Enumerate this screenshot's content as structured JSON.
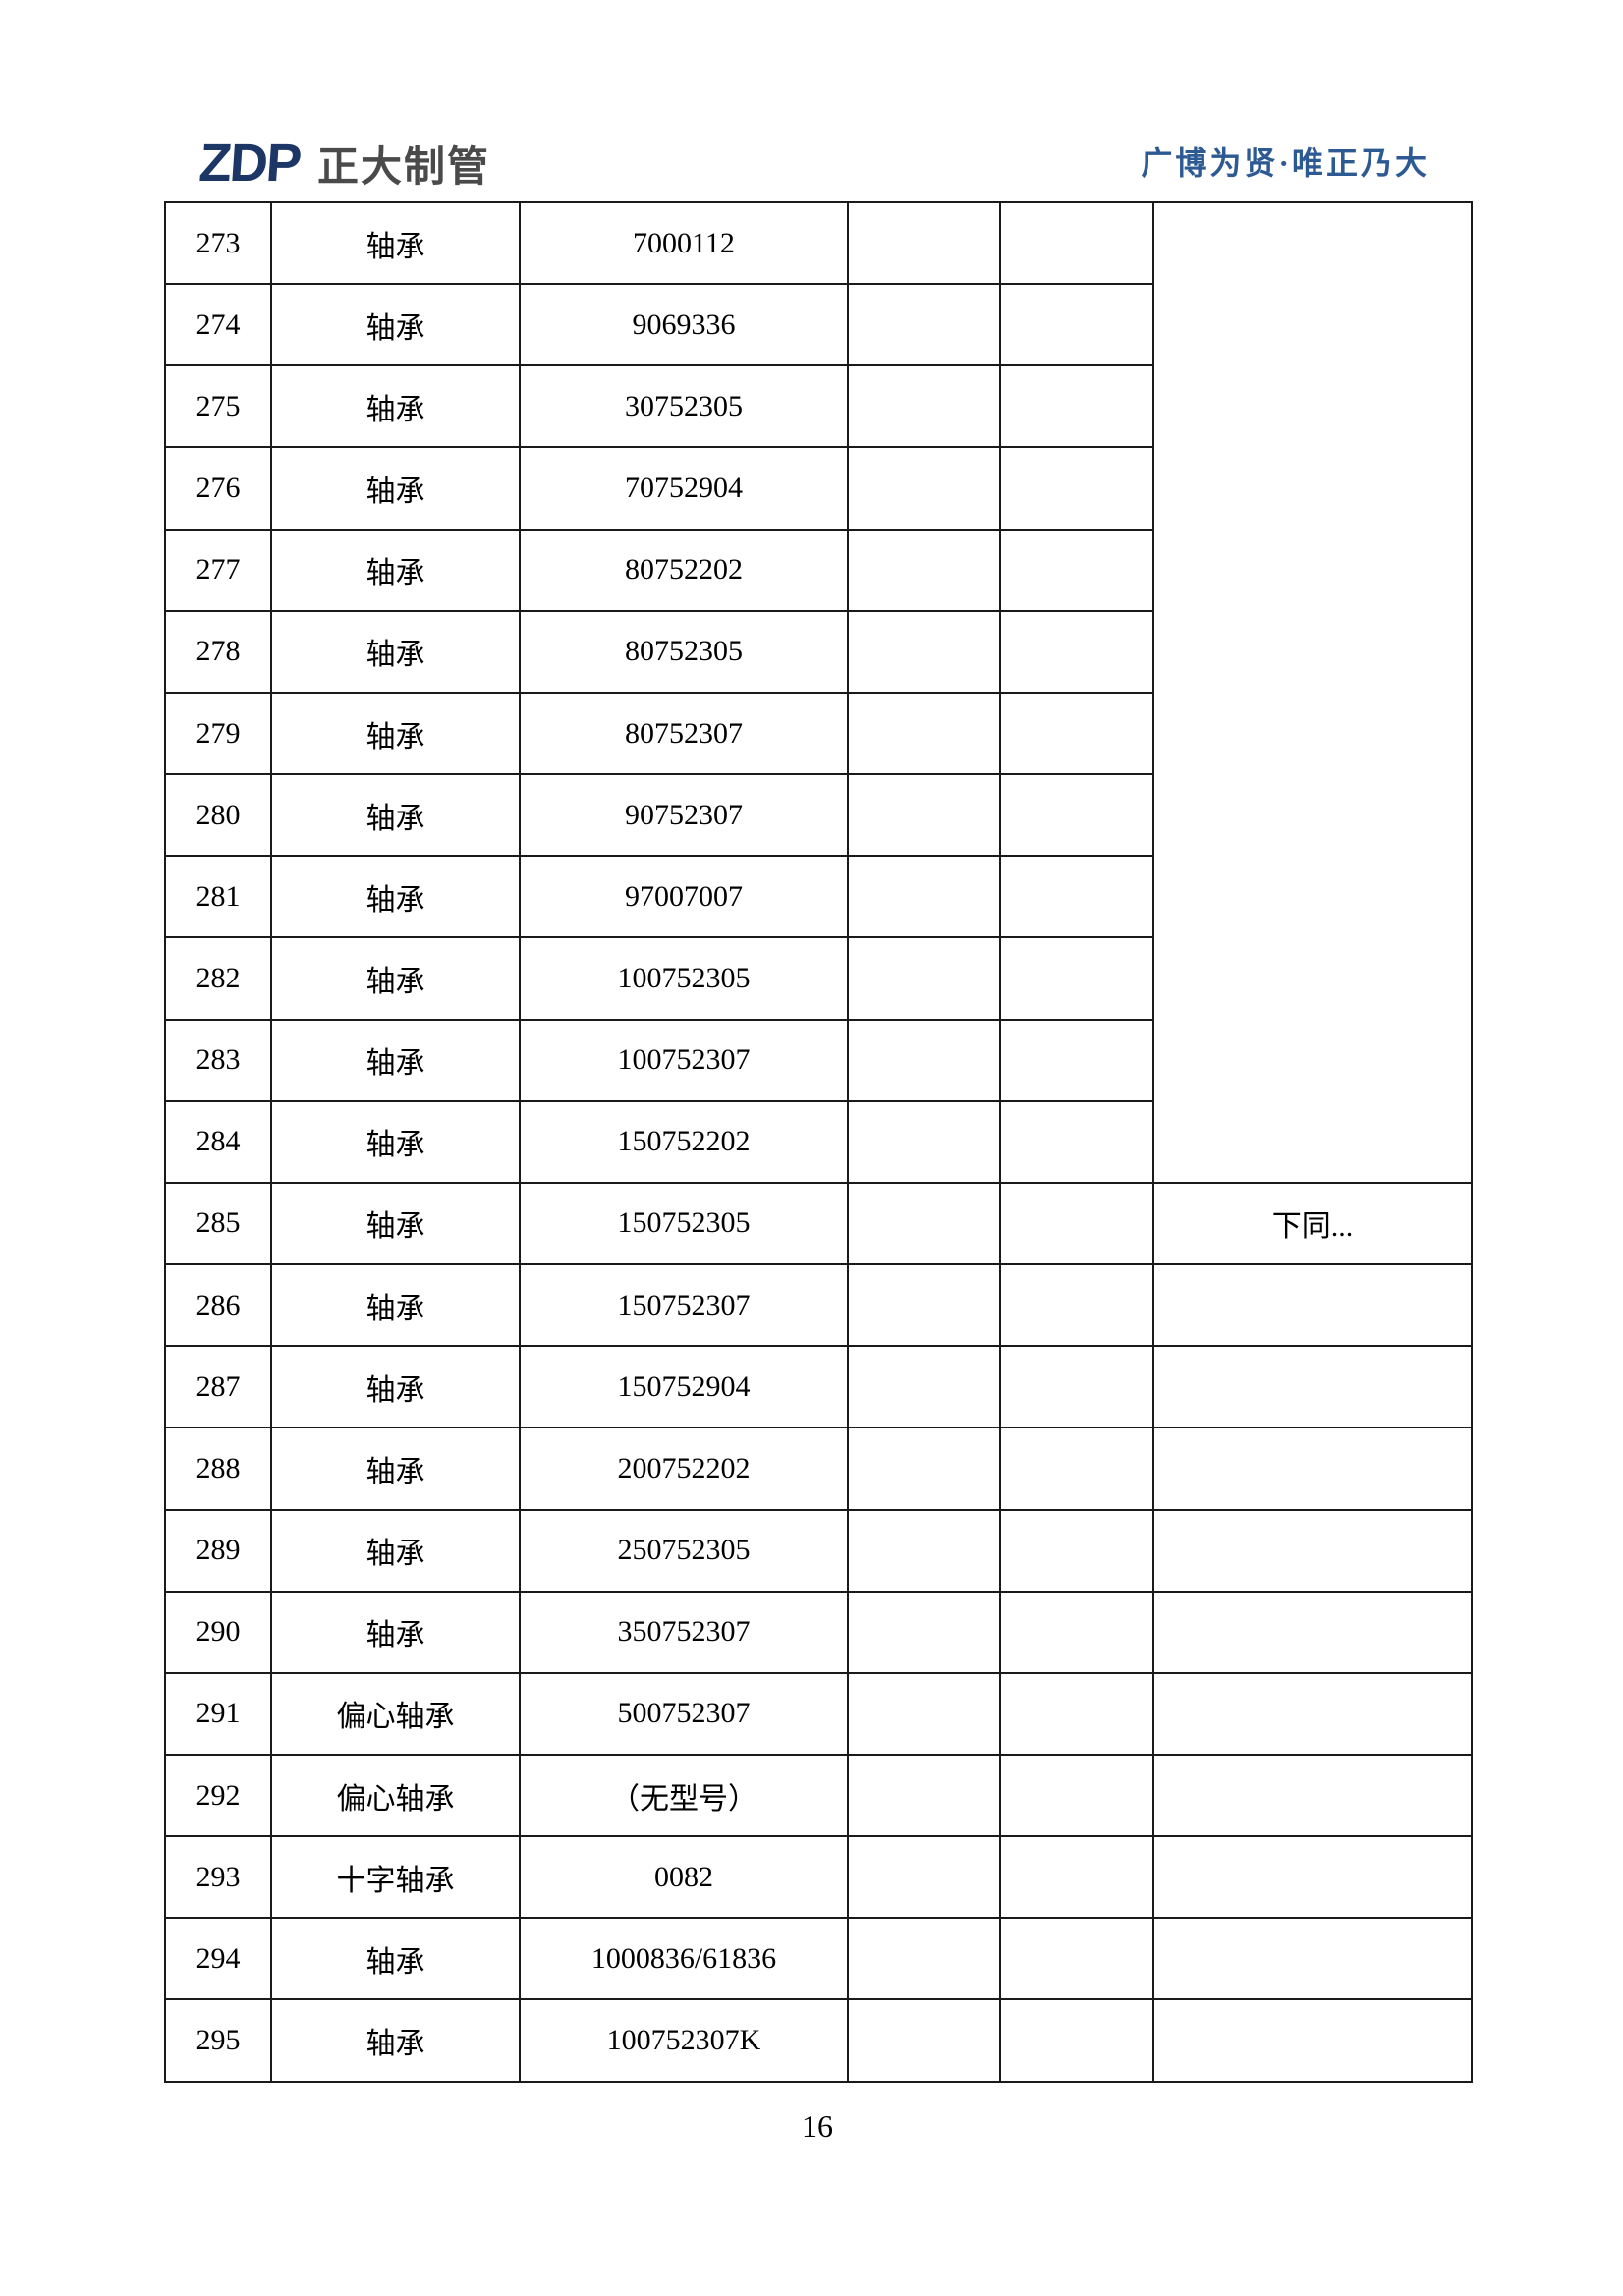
{
  "colors": {
    "logo_blue": "#1c3766",
    "logo_gray": "#4a4a4a",
    "slogan_blue": "#2d5a92",
    "border_color": "#1a1a1a"
  },
  "header": {
    "logo": {
      "acronym": "ZDP",
      "name": "正大制管"
    },
    "slogan": "广博为贤·唯正乃大"
  },
  "footer": {
    "page_number": "16"
  },
  "table": {
    "merged_remark_span": 12,
    "merged_remark_text": "",
    "rows": [
      {
        "no": "273",
        "name": "轴承",
        "model": "7000112",
        "blank1": "",
        "blank2": "",
        "remark": ""
      },
      {
        "no": "274",
        "name": "轴承",
        "model": "9069336",
        "blank1": "",
        "blank2": "",
        "remark": ""
      },
      {
        "no": "275",
        "name": "轴承",
        "model": "30752305",
        "blank1": "",
        "blank2": "",
        "remark": ""
      },
      {
        "no": "276",
        "name": "轴承",
        "model": "70752904",
        "blank1": "",
        "blank2": "",
        "remark": ""
      },
      {
        "no": "277",
        "name": "轴承",
        "model": "80752202",
        "blank1": "",
        "blank2": "",
        "remark": ""
      },
      {
        "no": "278",
        "name": "轴承",
        "model": "80752305",
        "blank1": "",
        "blank2": "",
        "remark": ""
      },
      {
        "no": "279",
        "name": "轴承",
        "model": "80752307",
        "blank1": "",
        "blank2": "",
        "remark": ""
      },
      {
        "no": "280",
        "name": "轴承",
        "model": "90752307",
        "blank1": "",
        "blank2": "",
        "remark": ""
      },
      {
        "no": "281",
        "name": "轴承",
        "model": "97007007",
        "blank1": "",
        "blank2": "",
        "remark": ""
      },
      {
        "no": "282",
        "name": "轴承",
        "model": "100752305",
        "blank1": "",
        "blank2": "",
        "remark": ""
      },
      {
        "no": "283",
        "name": "轴承",
        "model": "100752307",
        "blank1": "",
        "blank2": "",
        "remark": ""
      },
      {
        "no": "284",
        "name": "轴承",
        "model": "150752202",
        "blank1": "",
        "blank2": "",
        "remark": ""
      },
      {
        "no": "285",
        "name": "轴承",
        "model": "150752305",
        "blank1": "",
        "blank2": "",
        "remark": "下同..."
      },
      {
        "no": "286",
        "name": "轴承",
        "model": "150752307",
        "blank1": "",
        "blank2": "",
        "remark": ""
      },
      {
        "no": "287",
        "name": "轴承",
        "model": "150752904",
        "blank1": "",
        "blank2": "",
        "remark": ""
      },
      {
        "no": "288",
        "name": "轴承",
        "model": "200752202",
        "blank1": "",
        "blank2": "",
        "remark": ""
      },
      {
        "no": "289",
        "name": "轴承",
        "model": "250752305",
        "blank1": "",
        "blank2": "",
        "remark": ""
      },
      {
        "no": "290",
        "name": "轴承",
        "model": "350752307",
        "blank1": "",
        "blank2": "",
        "remark": ""
      },
      {
        "no": "291",
        "name": "偏心轴承",
        "model": "500752307",
        "blank1": "",
        "blank2": "",
        "remark": ""
      },
      {
        "no": "292",
        "name": "偏心轴承",
        "model": "（无型号）",
        "blank1": "",
        "blank2": "",
        "remark": ""
      },
      {
        "no": "293",
        "name": "十字轴承",
        "model": "0082",
        "blank1": "",
        "blank2": "",
        "remark": ""
      },
      {
        "no": "294",
        "name": "轴承",
        "model": "1000836/61836",
        "blank1": "",
        "blank2": "",
        "remark": ""
      },
      {
        "no": "295",
        "name": "轴承",
        "model": "100752307K",
        "blank1": "",
        "blank2": "",
        "remark": ""
      }
    ]
  }
}
